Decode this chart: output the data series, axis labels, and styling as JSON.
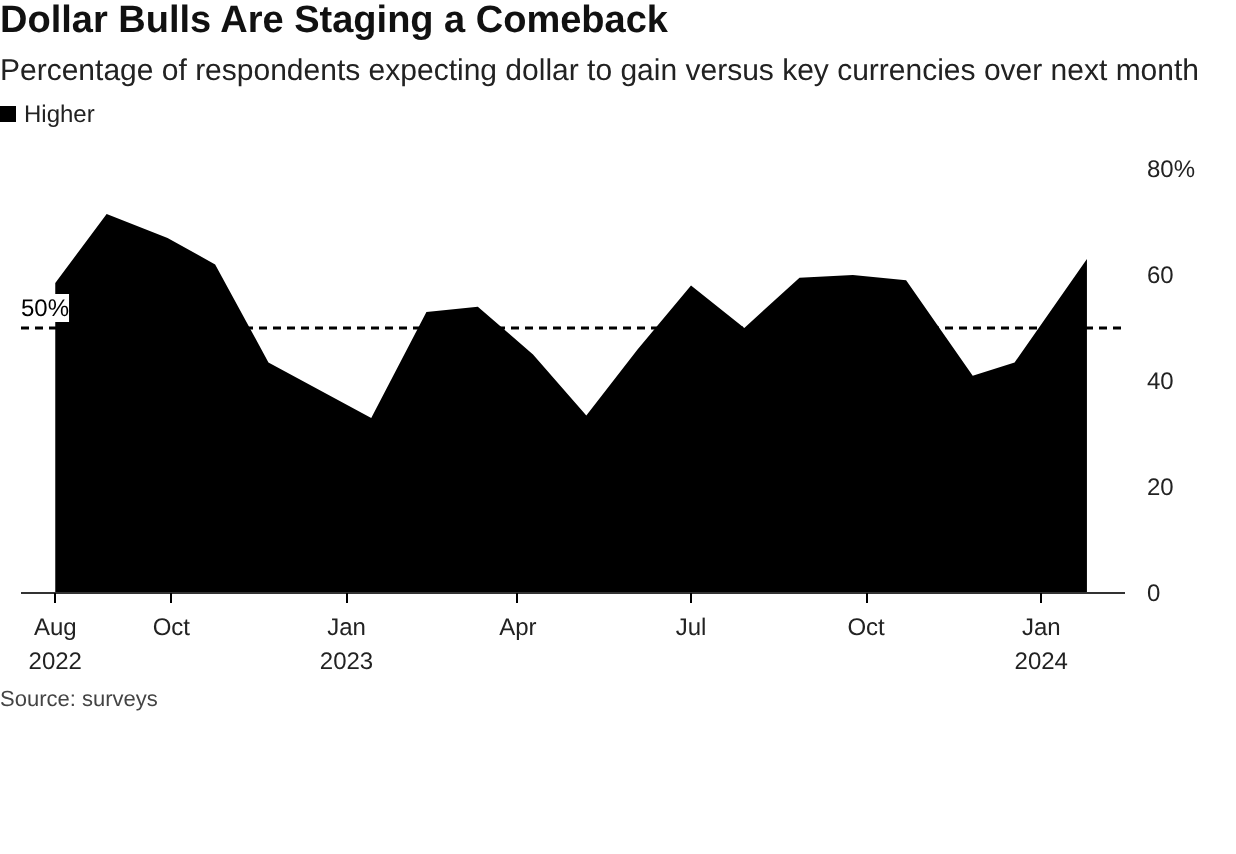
{
  "chart_data": {
    "type": "area",
    "title": "Dollar Bulls Are Staging a Comeback",
    "subtitle": "Percentage of respondents expecting dollar to gain versus key currencies over next month",
    "x": [
      "2022-08-01",
      "2022-08-28",
      "2022-09-29",
      "2022-10-24",
      "2022-11-21",
      "2023-01-14",
      "2023-02-12",
      "2023-03-11",
      "2023-04-09",
      "2023-05-07",
      "2023-06-03",
      "2023-07-01",
      "2023-07-29",
      "2023-08-27",
      "2023-09-24",
      "2023-10-22",
      "2023-11-26",
      "2023-12-18",
      "2024-01-25"
    ],
    "series": [
      {
        "name": "Higher",
        "color": "#000000",
        "values": [
          58.5,
          71.5,
          67,
          62,
          43.5,
          33,
          53,
          54,
          45,
          33.5,
          46,
          58,
          50,
          59.5,
          60,
          59,
          41,
          43.5,
          63
        ]
      }
    ],
    "xlim": [
      "2022-07-14",
      "2024-02-14"
    ],
    "xticks": [
      {
        "value": "2022-08-01",
        "label": "Aug\n2022"
      },
      {
        "value": "2022-10-01",
        "label": "Oct"
      },
      {
        "value": "2023-01-01",
        "label": "Jan\n2023"
      },
      {
        "value": "2023-04-01",
        "label": "Apr"
      },
      {
        "value": "2023-07-01",
        "label": "Jul"
      },
      {
        "value": "2023-10-01",
        "label": "Oct"
      },
      {
        "value": "2024-01-01",
        "label": "Jan\n2024"
      }
    ],
    "ylim": [
      0,
      80
    ],
    "yticks": [
      0,
      20,
      40,
      60,
      {
        "value": 80,
        "label": "80%"
      }
    ],
    "ref_lines": [
      {
        "axis": "y",
        "value": 50,
        "label": "50%",
        "color": "#000000",
        "line_style": "dashed"
      }
    ],
    "grid": false,
    "legend": "top left",
    "annotations": [
      "Source: surveys"
    ]
  }
}
